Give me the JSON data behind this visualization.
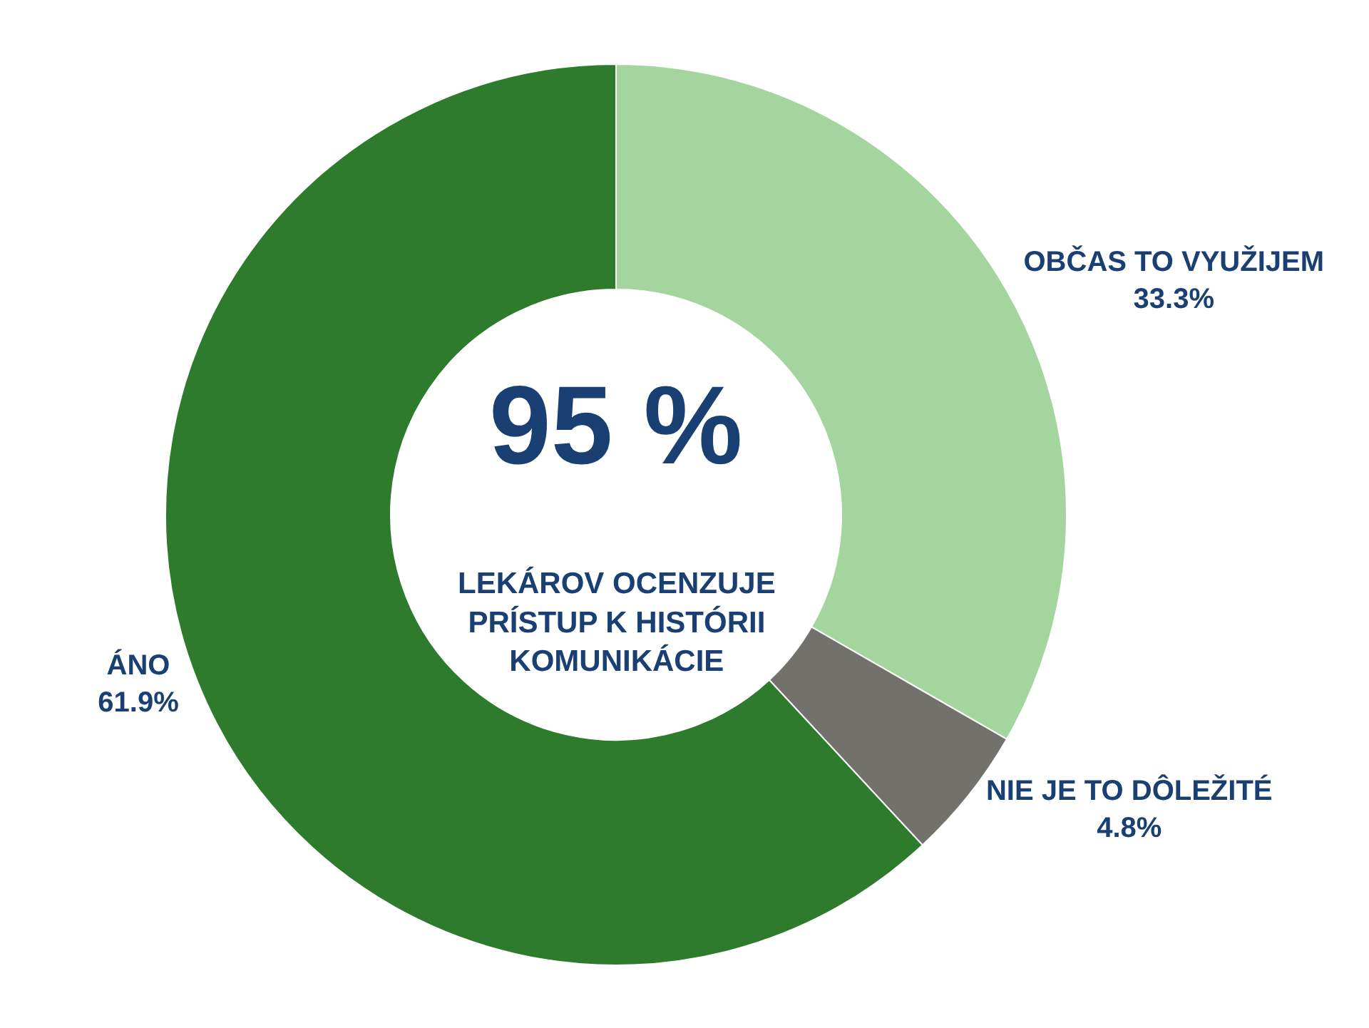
{
  "chart_data": {
    "type": "donut",
    "categories": [
      "OBČAS TO VYUŽIJEM",
      "NIE JE TO DÔLEŽITÉ",
      "ÁNO"
    ],
    "values": [
      33.3,
      4.8,
      61.9
    ],
    "colors": [
      "#a5d59f",
      "#73716c",
      "#2e7b2e"
    ],
    "value_labels": [
      "33.3%",
      "4.8%",
      "61.9%"
    ],
    "annotations": [
      "95 %",
      "LEKÁROV OCENZUJE\nPRÍSTUP K HISTÓRII\nKOMUNIKÁCIE"
    ],
    "legend": false
  }
}
